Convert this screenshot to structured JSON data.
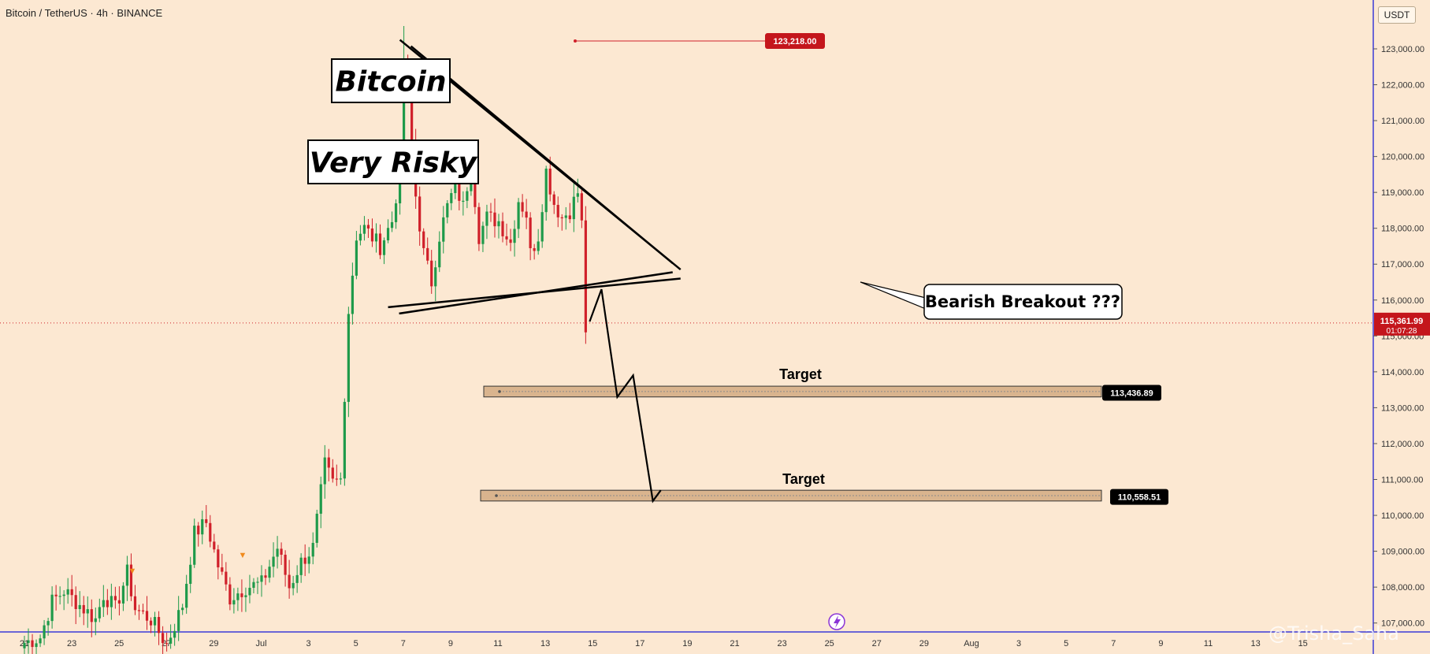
{
  "header": {
    "title": "Bitcoin / TetherUS · 4h · BINANCE",
    "currency": "USDT"
  },
  "watermark": "@Trisha_Saha",
  "colors": {
    "background": "#fce8d2",
    "up": "#1e9a4a",
    "down": "#d0202a",
    "axis": "#3b3bd8",
    "price_label": "#c4161c",
    "zone_fill": "#d9b48e"
  },
  "chart_data": {
    "type": "candlestick",
    "title": "",
    "xlabel": "",
    "ylabel": "",
    "ylim": [
      106400,
      123900
    ],
    "y_ticks": [
      "123,000.00",
      "122,000.00",
      "121,000.00",
      "120,000.00",
      "119,000.00",
      "118,000.00",
      "117,000.00",
      "116,000.00",
      "115,000.00",
      "114,000.00",
      "113,000.00",
      "112,000.00",
      "111,000.00",
      "110,000.00",
      "109,000.00",
      "108,000.00",
      "107,000.00"
    ],
    "y_tick_values": [
      123000,
      122000,
      121000,
      120000,
      119000,
      118000,
      117000,
      116000,
      115000,
      114000,
      113000,
      112000,
      111000,
      110000,
      109000,
      108000,
      107000
    ],
    "x_ticks": [
      "21",
      "23",
      "25",
      "27",
      "29",
      "Jul",
      "3",
      "5",
      "7",
      "9",
      "11",
      "13",
      "15",
      "17",
      "19",
      "21",
      "23",
      "25",
      "27",
      "29",
      "Aug",
      "3",
      "5",
      "7",
      "9",
      "11",
      "13",
      "15"
    ],
    "x_start_index": 0,
    "current_price": {
      "value": 115361.99,
      "label": "115,361.99",
      "countdown": "01:07:28"
    },
    "ohlc_anchors": [
      {
        "i": 0,
        "v": 106450
      },
      {
        "i": 4,
        "v": 106600
      },
      {
        "i": 7,
        "v": 107600
      },
      {
        "i": 10,
        "v": 107900
      },
      {
        "i": 14,
        "v": 107500
      },
      {
        "i": 18,
        "v": 107100
      },
      {
        "i": 20,
        "v": 107800
      },
      {
        "i": 23,
        "v": 107400
      },
      {
        "i": 26,
        "v": 108400
      },
      {
        "i": 28,
        "v": 107400
      },
      {
        "i": 32,
        "v": 107100
      },
      {
        "i": 36,
        "v": 106400
      },
      {
        "i": 40,
        "v": 107500
      },
      {
        "i": 43,
        "v": 109500
      },
      {
        "i": 46,
        "v": 109800
      },
      {
        "i": 49,
        "v": 108600
      },
      {
        "i": 52,
        "v": 107700
      },
      {
        "i": 56,
        "v": 108000
      },
      {
        "i": 60,
        "v": 108100
      },
      {
        "i": 64,
        "v": 109100
      },
      {
        "i": 67,
        "v": 108000
      },
      {
        "i": 70,
        "v": 108700
      },
      {
        "i": 73,
        "v": 109100
      },
      {
        "i": 76,
        "v": 111400
      },
      {
        "i": 78,
        "v": 110900
      },
      {
        "i": 80,
        "v": 111000
      },
      {
        "i": 81,
        "v": 113400
      },
      {
        "i": 82,
        "v": 115700
      },
      {
        "i": 84,
        "v": 117800
      },
      {
        "i": 86,
        "v": 118000
      },
      {
        "i": 90,
        "v": 117500
      },
      {
        "i": 93,
        "v": 118200
      },
      {
        "i": 95,
        "v": 119600
      },
      {
        "i": 96,
        "v": 122700
      },
      {
        "i": 97,
        "v": 121800
      },
      {
        "i": 99,
        "v": 118900
      },
      {
        "i": 101,
        "v": 117300
      },
      {
        "i": 103,
        "v": 116500
      },
      {
        "i": 105,
        "v": 117800
      },
      {
        "i": 107,
        "v": 118600
      },
      {
        "i": 109,
        "v": 119200
      },
      {
        "i": 111,
        "v": 118600
      },
      {
        "i": 113,
        "v": 119800
      },
      {
        "i": 115,
        "v": 117800
      },
      {
        "i": 117,
        "v": 118300
      },
      {
        "i": 120,
        "v": 118200
      },
      {
        "i": 123,
        "v": 117600
      },
      {
        "i": 125,
        "v": 118800
      },
      {
        "i": 127,
        "v": 118400
      },
      {
        "i": 128,
        "v": 117300
      },
      {
        "i": 130,
        "v": 117800
      },
      {
        "i": 132,
        "v": 119600
      },
      {
        "i": 134,
        "v": 118700
      },
      {
        "i": 136,
        "v": 118300
      },
      {
        "i": 138,
        "v": 118500
      },
      {
        "i": 140,
        "v": 119000
      },
      {
        "i": 141,
        "v": 118100
      },
      {
        "i": 142,
        "v": 115100
      }
    ],
    "series": [
      {
        "name": "",
        "note": "candlestick bars (BTC/USDT 4h), drawn from ohlc_anchors"
      }
    ],
    "price_labels": [
      {
        "value": 123218.0,
        "label": "123,218.00"
      },
      {
        "value": 113436.89,
        "label": "113,436.89"
      },
      {
        "value": 110558.51,
        "label": "110,558.51"
      }
    ],
    "annotations": {
      "title_box": "Bitcoin",
      "risk_box": "Very Risky",
      "callout": "Bearish Breakout ???",
      "targets": [
        "Target",
        "Target"
      ],
      "pattern": "symmetrical triangle",
      "markers": [
        "▼",
        "▼"
      ]
    },
    "trendlines": [
      {
        "name": "upper",
        "from": {
          "i": 95,
          "v": 123250
        },
        "to": {
          "i": 166,
          "v": 116850
        }
      },
      {
        "name": "lower",
        "from": {
          "i": 92,
          "v": 115800
        },
        "to": {
          "i": 166,
          "v": 116600
        }
      }
    ],
    "projection_path": [
      {
        "i": 143,
        "v": 115400
      },
      {
        "i": 146,
        "v": 116300
      },
      {
        "i": 150,
        "v": 113300
      },
      {
        "i": 154,
        "v": 113900
      },
      {
        "i": 159,
        "v": 110400
      },
      {
        "i": 161,
        "v": 110700
      }
    ],
    "target_zones": [
      {
        "top": 113600,
        "bottom": 113300
      },
      {
        "top": 110700,
        "bottom": 110400
      }
    ],
    "grid": false,
    "legend": "none"
  }
}
